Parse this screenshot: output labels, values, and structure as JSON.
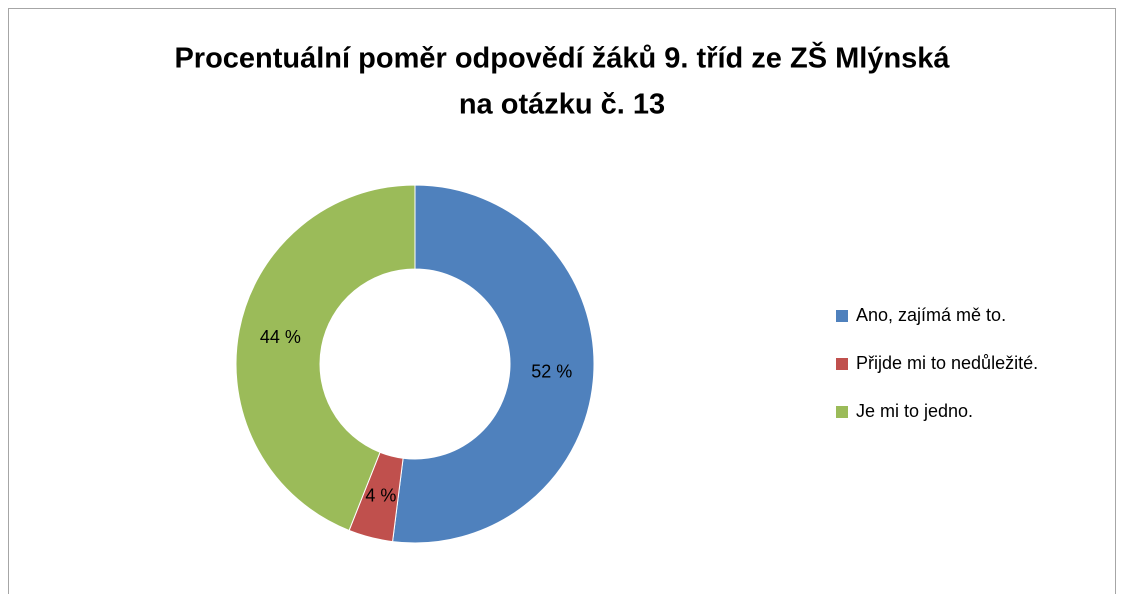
{
  "chart_data": {
    "type": "donut",
    "title": [
      "Procentuální poměr odpovědí žáků 9. tříd ze ZŠ Mlýnská",
      "na otázku č. 13"
    ],
    "categories": [
      "Ano, zajímá mě to.",
      "Přijde mi to nedůležité.",
      "Je mi to jedno."
    ],
    "values": [
      52,
      4,
      44
    ],
    "value_labels": [
      "52 %",
      "4 %",
      "44 %"
    ],
    "colors": [
      "#4f81bd",
      "#c0504d",
      "#9bbb59"
    ],
    "legend": "right"
  }
}
